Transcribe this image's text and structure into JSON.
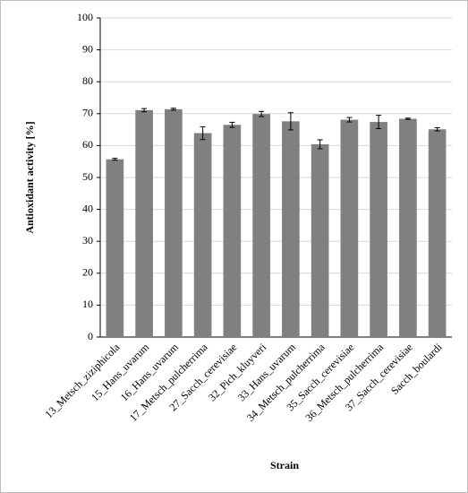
{
  "chart_data": {
    "type": "bar",
    "y_label": "Antioxidant activity [%]",
    "x_label": "Strain",
    "categories": [
      "13_Metsch_ziziphicola",
      "15_Hans_uvarum",
      "16_Hans_uvarum",
      "17_Metsch_pulcherrima",
      "27_Sacch_cerevisiae",
      "32_Pich_kluyveri",
      "33_Hans_uvarum",
      "34_Metsch_pulcherrima",
      "35_Sacch_cerevisiae",
      "36_Metsch_pulcherrima",
      "37_Sacch_cerevisiae",
      "Sacch_boulardi"
    ],
    "values": [
      55.7,
      71.1,
      71.4,
      63.9,
      66.5,
      69.9,
      67.6,
      60.4,
      68.1,
      67.4,
      68.4,
      65.1
    ],
    "errors": [
      0.3,
      0.5,
      0.3,
      2.0,
      0.8,
      0.8,
      2.7,
      1.4,
      0.7,
      2.1,
      0.2,
      0.5
    ],
    "color": "#808080",
    "ylim": [
      0,
      100
    ],
    "yticks": [
      0,
      10,
      20,
      30,
      40,
      50,
      60,
      70,
      80,
      90,
      100
    ],
    "grid": true
  }
}
